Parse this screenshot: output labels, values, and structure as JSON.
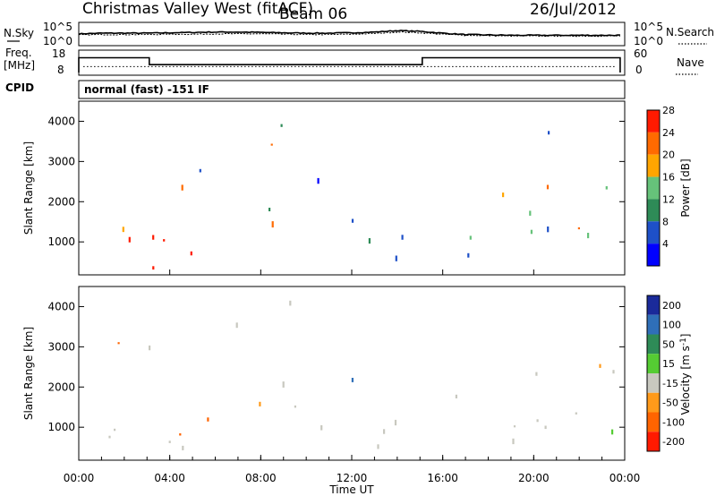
{
  "header": {
    "title": "Christmas Valley West (fitACF)",
    "beam": "Beam 06",
    "date": "26/Jul/2012"
  },
  "scan_info": {
    "cpid_label": "CPID",
    "mode": "normal (fast) -151 IF"
  },
  "chart_data": [
    {
      "type": "line",
      "title": "",
      "left_label": "N.Sky",
      "right_label": "N.Search",
      "left_ticks": [
        "10^5",
        "10^0"
      ],
      "right_ticks": [
        "10^5",
        "10^0"
      ],
      "x": [
        0,
        1,
        2,
        3,
        4,
        5,
        6,
        7,
        8,
        9,
        10,
        11,
        12,
        13,
        14,
        15,
        16,
        17,
        18,
        19,
        20,
        21,
        22,
        23
      ],
      "series": [
        {
          "values": [
            2.8,
            3.0,
            3.0,
            3.0,
            3.1,
            3.2,
            3.3,
            3.3,
            3.2,
            3.1,
            3.0,
            3.0,
            3.1,
            3.3,
            3.7,
            3.5,
            3.0,
            2.6,
            2.5,
            2.4,
            2.4,
            2.4,
            2.4,
            2.4
          ]
        },
        {
          "values": [
            2.5,
            2.6,
            2.6,
            2.6,
            2.7,
            2.7,
            2.8,
            2.8,
            2.8,
            2.7,
            2.6,
            2.6,
            2.7,
            2.9,
            3.3,
            3.1,
            2.7,
            2.4,
            2.3,
            2.2,
            2.2,
            2.2,
            2.2,
            2.2
          ]
        }
      ],
      "ylim": [
        0,
        5
      ]
    },
    {
      "type": "line",
      "left_label_line1": "Freq.",
      "left_label_line2": "[MHz]",
      "right_label": "Nave",
      "left_ticks": [
        "18",
        "8"
      ],
      "right_ticks": [
        "60",
        "0"
      ],
      "frequency_steps": [
        {
          "start": 0.0,
          "end": 3.1,
          "value": 15.5
        },
        {
          "start": 3.1,
          "end": 15.1,
          "value": 12.0
        },
        {
          "start": 15.1,
          "end": 24.0,
          "value": 15.5
        }
      ],
      "nave_level": 11,
      "ylim": [
        8,
        18
      ]
    },
    {
      "type": "heatmap",
      "ylabel": "Slant Range [km]",
      "yticks": [
        "1000",
        "2000",
        "3000",
        "4000"
      ],
      "ylim": [
        180,
        4500
      ],
      "colorbar_label": "Power [dB]",
      "colorbar_ticks": [
        "4",
        "8",
        "12",
        "16",
        "20",
        "24",
        "28"
      ],
      "colors": [
        "#0000ff",
        "#1e50c8",
        "#2e8b57",
        "#66c27a",
        "#ffa500",
        "#ff6a00",
        "#ff1a00"
      ]
    },
    {
      "type": "heatmap",
      "ylabel": "Slant Range [km]",
      "yticks": [
        "1000",
        "2000",
        "3000",
        "4000"
      ],
      "ylim": [
        180,
        4500
      ],
      "colorbar_label": "Velocity [m s",
      "colorbar_label_sup": "-1",
      "colorbar_label_end": "]",
      "colorbar_ticks": [
        "200",
        "100",
        "50",
        "15",
        "-15",
        "-50",
        "-100",
        "-200"
      ],
      "colors": [
        "#1a2a9a",
        "#2f6fb8",
        "#2e8b57",
        "#55cc33",
        "#c8c8bf",
        "#ff9a1a",
        "#ff6400",
        "#ff1a00"
      ],
      "xlabel": "Time UT",
      "xticks": [
        "00:00",
        "04:00",
        "08:00",
        "12:00",
        "16:00",
        "20:00",
        "00:00"
      ],
      "xlim": [
        0,
        24
      ]
    }
  ]
}
